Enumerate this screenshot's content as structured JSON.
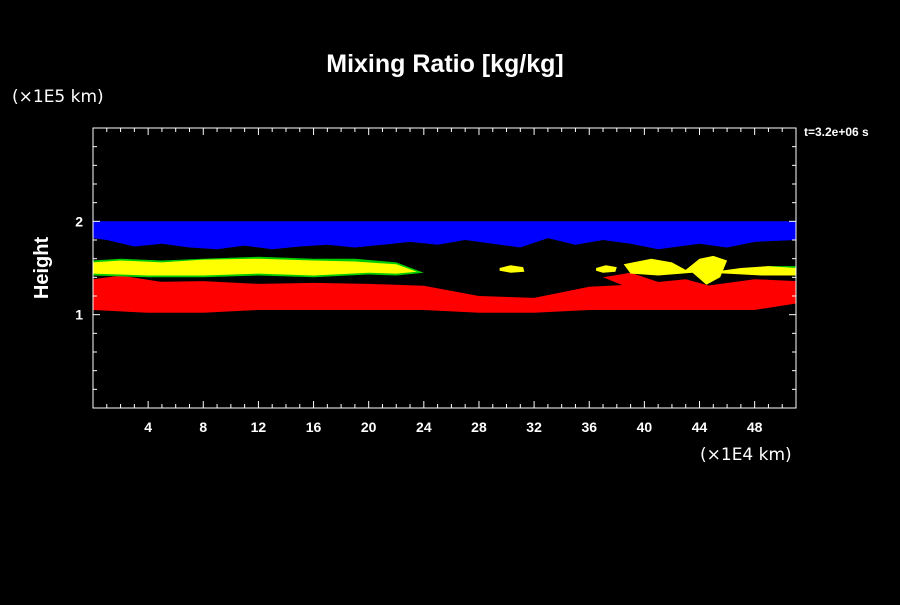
{
  "chart_data": {
    "type": "heatmap",
    "title": "Mixing Ratio [kg/kg]",
    "ylabel": "Height",
    "y_unit": "(×1E5 km)",
    "x_unit": "(×1E4 km)",
    "time_label": "t=3.2e+06 s",
    "xlim": [
      0,
      51
    ],
    "ylim": [
      0,
      3
    ],
    "x_ticks": [
      4,
      8,
      12,
      16,
      20,
      24,
      28,
      32,
      36,
      40,
      44,
      48
    ],
    "y_ticks": [
      1,
      2
    ],
    "layers": [
      {
        "color": "#0000ff",
        "points": [
          [
            0,
            2.0
          ],
          [
            51,
            2.0
          ],
          [
            51,
            1.8
          ],
          [
            48,
            1.78
          ],
          [
            46,
            1.72
          ],
          [
            44,
            1.76
          ],
          [
            41,
            1.7
          ],
          [
            39,
            1.76
          ],
          [
            37,
            1.8
          ],
          [
            35,
            1.75
          ],
          [
            33,
            1.82
          ],
          [
            31,
            1.72
          ],
          [
            29,
            1.76
          ],
          [
            27,
            1.8
          ],
          [
            25,
            1.75
          ],
          [
            23,
            1.78
          ],
          [
            21,
            1.75
          ],
          [
            19,
            1.72
          ],
          [
            17,
            1.75
          ],
          [
            15,
            1.73
          ],
          [
            13,
            1.7
          ],
          [
            11,
            1.74
          ],
          [
            9,
            1.7
          ],
          [
            7,
            1.72
          ],
          [
            5,
            1.76
          ],
          [
            3,
            1.73
          ],
          [
            1,
            1.8
          ],
          [
            0,
            1.82
          ]
        ]
      },
      {
        "color": "#ff0000",
        "points": [
          [
            0,
            1.38
          ],
          [
            4,
            1.35
          ],
          [
            8,
            1.36
          ],
          [
            12,
            1.33
          ],
          [
            16,
            1.34
          ],
          [
            20,
            1.33
          ],
          [
            24,
            1.31
          ],
          [
            28,
            1.2
          ],
          [
            32,
            1.18
          ],
          [
            36,
            1.3
          ],
          [
            40,
            1.33
          ],
          [
            44,
            1.3
          ],
          [
            48,
            1.38
          ],
          [
            51,
            1.36
          ],
          [
            51,
            1.12
          ],
          [
            48,
            1.05
          ],
          [
            44,
            1.05
          ],
          [
            40,
            1.05
          ],
          [
            36,
            1.05
          ],
          [
            32,
            1.02
          ],
          [
            28,
            1.02
          ],
          [
            24,
            1.05
          ],
          [
            20,
            1.05
          ],
          [
            16,
            1.05
          ],
          [
            12,
            1.05
          ],
          [
            8,
            1.02
          ],
          [
            4,
            1.02
          ],
          [
            0,
            1.05
          ]
        ]
      },
      {
        "color": "#ff0000",
        "points": [
          [
            37,
            1.4
          ],
          [
            39,
            1.45
          ],
          [
            41,
            1.35
          ],
          [
            43,
            1.38
          ],
          [
            45,
            1.3
          ],
          [
            47,
            1.3
          ],
          [
            45,
            1.2
          ],
          [
            42,
            1.2
          ],
          [
            39,
            1.28
          ]
        ]
      },
      {
        "color": "#ff0000",
        "points": [
          [
            0,
            1.38
          ],
          [
            2,
            1.42
          ],
          [
            5,
            1.35
          ],
          [
            7,
            1.3
          ],
          [
            4,
            1.26
          ],
          [
            0,
            1.28
          ]
        ]
      },
      {
        "color": "#00cc00",
        "points": [
          [
            0,
            1.58
          ],
          [
            2,
            1.6
          ],
          [
            5,
            1.58
          ],
          [
            8,
            1.6
          ],
          [
            12,
            1.62
          ],
          [
            16,
            1.6
          ],
          [
            19,
            1.6
          ],
          [
            22,
            1.56
          ],
          [
            24,
            1.45
          ],
          [
            22,
            1.42
          ],
          [
            20,
            1.43
          ],
          [
            16,
            1.4
          ],
          [
            12,
            1.42
          ],
          [
            8,
            1.4
          ],
          [
            4,
            1.4
          ],
          [
            0,
            1.42
          ]
        ]
      },
      {
        "color": "#ffff00",
        "points": [
          [
            0,
            1.56
          ],
          [
            2,
            1.58
          ],
          [
            5,
            1.56
          ],
          [
            8,
            1.59
          ],
          [
            12,
            1.6
          ],
          [
            16,
            1.58
          ],
          [
            19,
            1.57
          ],
          [
            22,
            1.54
          ],
          [
            23.5,
            1.46
          ],
          [
            22,
            1.44
          ],
          [
            20,
            1.45
          ],
          [
            16,
            1.42
          ],
          [
            12,
            1.44
          ],
          [
            8,
            1.42
          ],
          [
            4,
            1.42
          ],
          [
            0,
            1.44
          ]
        ]
      },
      {
        "color": "#00cc00",
        "points": [
          [
            49,
            1.52
          ],
          [
            51,
            1.52
          ],
          [
            51,
            1.44
          ],
          [
            49,
            1.44
          ],
          [
            47.5,
            1.48
          ]
        ]
      },
      {
        "color": "#ffff00",
        "points": [
          [
            47,
            1.5
          ],
          [
            49,
            1.52
          ],
          [
            51,
            1.5
          ],
          [
            51,
            1.42
          ],
          [
            48.5,
            1.42
          ],
          [
            46,
            1.44
          ],
          [
            44.5,
            1.45
          ],
          [
            46,
            1.48
          ]
        ]
      },
      {
        "color": "#ffff00",
        "points": [
          [
            38.5,
            1.54
          ],
          [
            40.5,
            1.6
          ],
          [
            42,
            1.56
          ],
          [
            43,
            1.48
          ],
          [
            44,
            1.6
          ],
          [
            45,
            1.63
          ],
          [
            46,
            1.58
          ],
          [
            45.5,
            1.4
          ],
          [
            44.5,
            1.32
          ],
          [
            43.5,
            1.45
          ],
          [
            41,
            1.42
          ],
          [
            39,
            1.44
          ]
        ]
      },
      {
        "color": "#ffff00",
        "points": [
          [
            29.5,
            1.5
          ],
          [
            30.3,
            1.53
          ],
          [
            31.2,
            1.51
          ],
          [
            31.3,
            1.46
          ],
          [
            30.3,
            1.45
          ],
          [
            29.5,
            1.47
          ]
        ]
      },
      {
        "color": "#ffff00",
        "points": [
          [
            36.5,
            1.5
          ],
          [
            37.2,
            1.53
          ],
          [
            38,
            1.51
          ],
          [
            37.9,
            1.46
          ],
          [
            37,
            1.45
          ],
          [
            36.5,
            1.47
          ]
        ]
      }
    ]
  }
}
